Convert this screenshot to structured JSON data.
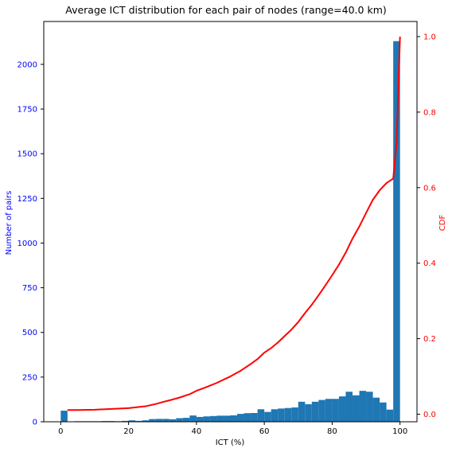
{
  "chart_data": {
    "type": "bar",
    "title": "Average ICT distribution for each pair of nodes (range=40.0 km)",
    "xlabel": "ICT (%)",
    "ylabel_left": "Number of pairs",
    "ylabel_right": "CDF",
    "xlim": [
      -5,
      105
    ],
    "ylim_left": [
      0,
      2240
    ],
    "ylim_right": [
      -0.02,
      1.04
    ],
    "x_ticks": [
      0,
      20,
      40,
      60,
      80,
      100
    ],
    "y_left_ticks": [
      0,
      250,
      500,
      750,
      1000,
      1250,
      1500,
      1750,
      2000
    ],
    "y_right_ticks": [
      0.0,
      0.2,
      0.4,
      0.6,
      0.8,
      1.0
    ],
    "colors": {
      "bars": "#1f77b4",
      "cdf_line": "#ff0000",
      "left_axis": "#0000ff",
      "right_axis": "#ff0000"
    },
    "series": [
      {
        "name": "Number of pairs",
        "kind": "histogram",
        "bin_width": 2,
        "bins": [
          {
            "x": 0,
            "y": 62
          },
          {
            "x": 2,
            "y": 1
          },
          {
            "x": 4,
            "y": 3
          },
          {
            "x": 6,
            "y": 3
          },
          {
            "x": 8,
            "y": 3
          },
          {
            "x": 10,
            "y": 3
          },
          {
            "x": 12,
            "y": 4
          },
          {
            "x": 14,
            "y": 4
          },
          {
            "x": 16,
            "y": 3
          },
          {
            "x": 18,
            "y": 5
          },
          {
            "x": 20,
            "y": 8
          },
          {
            "x": 22,
            "y": 5
          },
          {
            "x": 24,
            "y": 8
          },
          {
            "x": 26,
            "y": 15
          },
          {
            "x": 28,
            "y": 16
          },
          {
            "x": 30,
            "y": 16
          },
          {
            "x": 32,
            "y": 14
          },
          {
            "x": 34,
            "y": 20
          },
          {
            "x": 36,
            "y": 22
          },
          {
            "x": 38,
            "y": 35
          },
          {
            "x": 40,
            "y": 27
          },
          {
            "x": 42,
            "y": 30
          },
          {
            "x": 44,
            "y": 32
          },
          {
            "x": 46,
            "y": 34
          },
          {
            "x": 48,
            "y": 34
          },
          {
            "x": 50,
            "y": 36
          },
          {
            "x": 52,
            "y": 44
          },
          {
            "x": 54,
            "y": 48
          },
          {
            "x": 56,
            "y": 49
          },
          {
            "x": 58,
            "y": 70
          },
          {
            "x": 60,
            "y": 55
          },
          {
            "x": 62,
            "y": 70
          },
          {
            "x": 64,
            "y": 74
          },
          {
            "x": 66,
            "y": 77
          },
          {
            "x": 68,
            "y": 80
          },
          {
            "x": 70,
            "y": 112
          },
          {
            "x": 72,
            "y": 98
          },
          {
            "x": 74,
            "y": 112
          },
          {
            "x": 76,
            "y": 122
          },
          {
            "x": 78,
            "y": 128
          },
          {
            "x": 80,
            "y": 128
          },
          {
            "x": 82,
            "y": 142
          },
          {
            "x": 84,
            "y": 168
          },
          {
            "x": 86,
            "y": 148
          },
          {
            "x": 88,
            "y": 173
          },
          {
            "x": 90,
            "y": 168
          },
          {
            "x": 92,
            "y": 135
          },
          {
            "x": 94,
            "y": 108
          },
          {
            "x": 96,
            "y": 68
          },
          {
            "x": 98,
            "y": 2130
          }
        ]
      },
      {
        "name": "CDF",
        "kind": "line",
        "points": [
          {
            "x": 2,
            "y": 0.011
          },
          {
            "x": 5,
            "y": 0.011
          },
          {
            "x": 10,
            "y": 0.012
          },
          {
            "x": 15,
            "y": 0.014
          },
          {
            "x": 20,
            "y": 0.016
          },
          {
            "x": 25,
            "y": 0.021
          },
          {
            "x": 28,
            "y": 0.027
          },
          {
            "x": 30,
            "y": 0.032
          },
          {
            "x": 33,
            "y": 0.039
          },
          {
            "x": 35,
            "y": 0.044
          },
          {
            "x": 38,
            "y": 0.053
          },
          {
            "x": 40,
            "y": 0.062
          },
          {
            "x": 43,
            "y": 0.072
          },
          {
            "x": 46,
            "y": 0.083
          },
          {
            "x": 50,
            "y": 0.1
          },
          {
            "x": 53,
            "y": 0.115
          },
          {
            "x": 56,
            "y": 0.133
          },
          {
            "x": 58,
            "y": 0.146
          },
          {
            "x": 60,
            "y": 0.163
          },
          {
            "x": 62,
            "y": 0.175
          },
          {
            "x": 64,
            "y": 0.19
          },
          {
            "x": 66,
            "y": 0.207
          },
          {
            "x": 68,
            "y": 0.224
          },
          {
            "x": 70,
            "y": 0.244
          },
          {
            "x": 72,
            "y": 0.268
          },
          {
            "x": 74,
            "y": 0.29
          },
          {
            "x": 76,
            "y": 0.315
          },
          {
            "x": 78,
            "y": 0.341
          },
          {
            "x": 80,
            "y": 0.368
          },
          {
            "x": 82,
            "y": 0.396
          },
          {
            "x": 84,
            "y": 0.428
          },
          {
            "x": 86,
            "y": 0.465
          },
          {
            "x": 88,
            "y": 0.497
          },
          {
            "x": 90,
            "y": 0.533
          },
          {
            "x": 92,
            "y": 0.568
          },
          {
            "x": 94,
            "y": 0.593
          },
          {
            "x": 96,
            "y": 0.612
          },
          {
            "x": 98,
            "y": 0.624
          },
          {
            "x": 99,
            "y": 0.72
          },
          {
            "x": 100,
            "y": 1.0
          }
        ]
      }
    ]
  }
}
